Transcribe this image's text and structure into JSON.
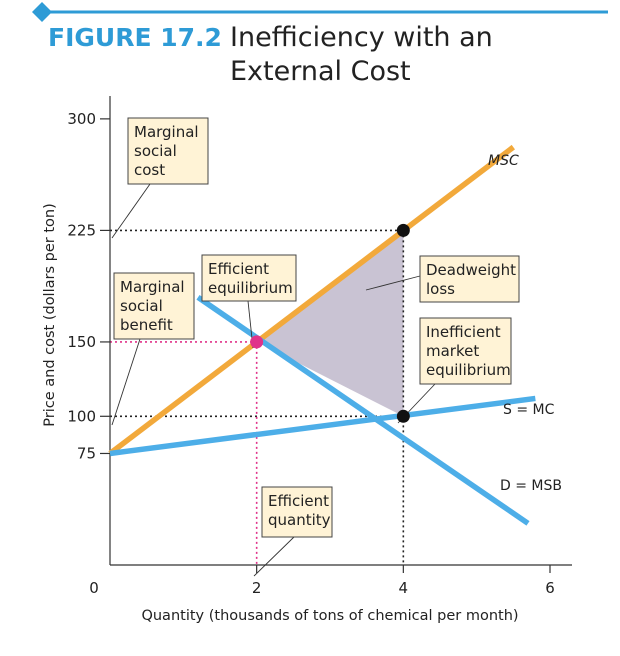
{
  "figure": {
    "number": "FIGURE 17.2",
    "title_line1": "Inefficiency with an",
    "title_line2": "External Cost"
  },
  "colors": {
    "accent": "#2e9bd6",
    "msc": "#f2a93b",
    "demand": "#4daee8",
    "supply": "#4daee8",
    "deadweight": "#c9c3d3",
    "efficient_point": "#e0338a",
    "box_fill": "#fff3d6",
    "highlight_text": "#e0338a"
  },
  "chart_data": {
    "type": "line",
    "xlabel": "Quantity (thousands of tons of chemical per month)",
    "ylabel": "Price and cost (dollars per ton)",
    "xlim": [
      0,
      6.3
    ],
    "ylim": [
      0,
      310
    ],
    "x_ticks": [
      {
        "value": 0,
        "label": "0",
        "highlight": false
      },
      {
        "value": 2,
        "label": "2",
        "highlight": true
      },
      {
        "value": 4,
        "label": "4",
        "highlight": false
      },
      {
        "value": 6,
        "label": "6",
        "highlight": false
      }
    ],
    "y_ticks": [
      {
        "value": 300,
        "label": "300",
        "highlight": false
      },
      {
        "value": 225,
        "label": "225",
        "highlight": false
      },
      {
        "value": 150,
        "label": "150",
        "highlight": true
      },
      {
        "value": 100,
        "label": "100",
        "highlight": false
      },
      {
        "value": 75,
        "label": "75",
        "highlight": false
      }
    ],
    "series": [
      {
        "name": "MSC",
        "color": "#f2a93b",
        "points": [
          [
            0,
            75
          ],
          [
            5.5,
            281
          ]
        ]
      },
      {
        "name": "S = MC",
        "color": "#4daee8",
        "points": [
          [
            0,
            75
          ],
          [
            5.8,
            112
          ]
        ]
      },
      {
        "name": "D = MSB",
        "color": "#4daee8",
        "points": [
          [
            1.2,
            180
          ],
          [
            5.7,
            28
          ]
        ]
      }
    ],
    "deadweight_loss_region": [
      [
        2,
        150
      ],
      [
        4,
        225
      ],
      [
        4,
        100
      ]
    ],
    "points": [
      {
        "x": 2,
        "y": 150,
        "kind": "efficient",
        "color": "#e0338a"
      },
      {
        "x": 4,
        "y": 225,
        "kind": "msc-at-market",
        "color": "#111111"
      },
      {
        "x": 4,
        "y": 100,
        "kind": "market",
        "color": "#111111"
      }
    ],
    "guide_lines": [
      {
        "from": [
          0,
          225
        ],
        "to": [
          4,
          225
        ],
        "color": "#222222"
      },
      {
        "from": [
          4,
          225
        ],
        "to": [
          4,
          0
        ],
        "color": "#222222"
      },
      {
        "from": [
          0,
          100
        ],
        "to": [
          4,
          100
        ],
        "color": "#222222"
      },
      {
        "from": [
          0,
          150
        ],
        "to": [
          2,
          150
        ],
        "color": "#e0338a"
      },
      {
        "from": [
          2,
          150
        ],
        "to": [
          2,
          0
        ],
        "color": "#e0338a"
      }
    ],
    "curve_labels": [
      {
        "text": "MSC",
        "italic_part": "MSC",
        "series": "MSC"
      },
      {
        "text": "S = MC",
        "series": "S = MC"
      },
      {
        "text": "D = MSB",
        "series": "D = MSB"
      }
    ],
    "annotations": [
      {
        "id": "marginal-social-cost",
        "lines": [
          "Marginal",
          "social",
          "cost"
        ]
      },
      {
        "id": "efficient-equilibrium",
        "lines": [
          "Efficient",
          "equilibrium"
        ]
      },
      {
        "id": "marginal-social-benefit",
        "lines": [
          "Marginal",
          "social",
          "benefit"
        ]
      },
      {
        "id": "deadweight-loss",
        "lines": [
          "Deadweight",
          "loss"
        ]
      },
      {
        "id": "inefficient-market-equilibrium",
        "lines": [
          "Inefficient",
          "market",
          "equilibrium"
        ]
      },
      {
        "id": "efficient-quantity",
        "lines": [
          "Efficient",
          "quantity"
        ]
      }
    ]
  }
}
